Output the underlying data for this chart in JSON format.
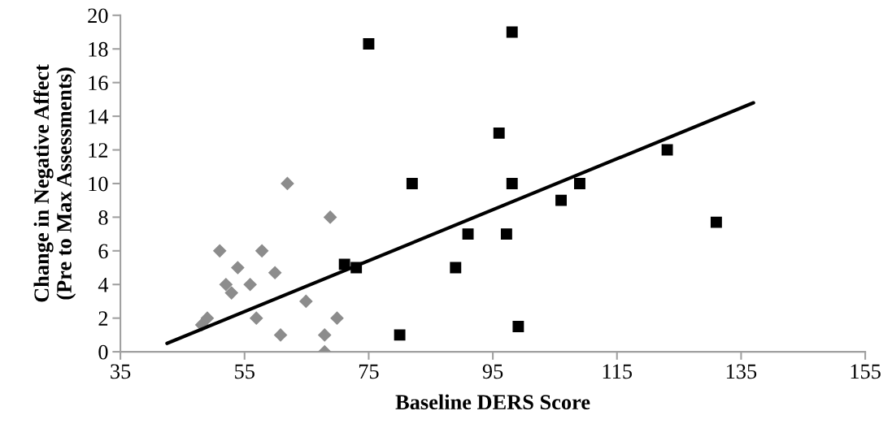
{
  "chart_data": {
    "type": "scatter",
    "xlabel": "Baseline DERS Score",
    "ylabel": "Change in Negative Affect\n(Pre to Max Assessments)",
    "xlim": [
      35,
      155
    ],
    "xticks": [
      35,
      55,
      75,
      95,
      115,
      135,
      155
    ],
    "ylim": [
      0,
      20
    ],
    "yticks": [
      0,
      2,
      4,
      6,
      8,
      10,
      12,
      14,
      16,
      18,
      20
    ],
    "grid": false,
    "legend": false,
    "series": [
      {
        "marker": "diamond",
        "color": "#8c8c8c",
        "x": [
          48.1,
          49.0,
          51.0,
          52.0,
          52.9,
          53.9,
          55.9,
          56.9,
          57.8,
          59.9,
          60.8,
          61.9,
          64.9,
          67.9,
          67.9,
          68.8,
          69.9
        ],
        "values": [
          1.6,
          2.0,
          6.0,
          4.0,
          3.5,
          5.0,
          4.0,
          2.0,
          6.0,
          4.7,
          1.0,
          10.0,
          3.0,
          1.0,
          0.0,
          8.0,
          2.0
        ]
      },
      {
        "marker": "square",
        "color": "#000000",
        "x": [
          75.0,
          98.1,
          96.0,
          82.0,
          98.1,
          109.0,
          106.0,
          123.1,
          131.0,
          91.0,
          97.2,
          71.1,
          73.0,
          89.0,
          80.0,
          99.1
        ],
        "values": [
          18.3,
          19.0,
          13.0,
          10.0,
          10.0,
          10.0,
          9.0,
          12.0,
          7.7,
          7.0,
          7.0,
          5.2,
          5.0,
          5.0,
          1.0,
          1.5
        ]
      },
      {
        "type": "line",
        "marker": "none",
        "line_style": "solid",
        "color": "#000000",
        "x": [
          42.5,
          137.0
        ],
        "values": [
          0.5,
          14.8
        ]
      }
    ]
  }
}
